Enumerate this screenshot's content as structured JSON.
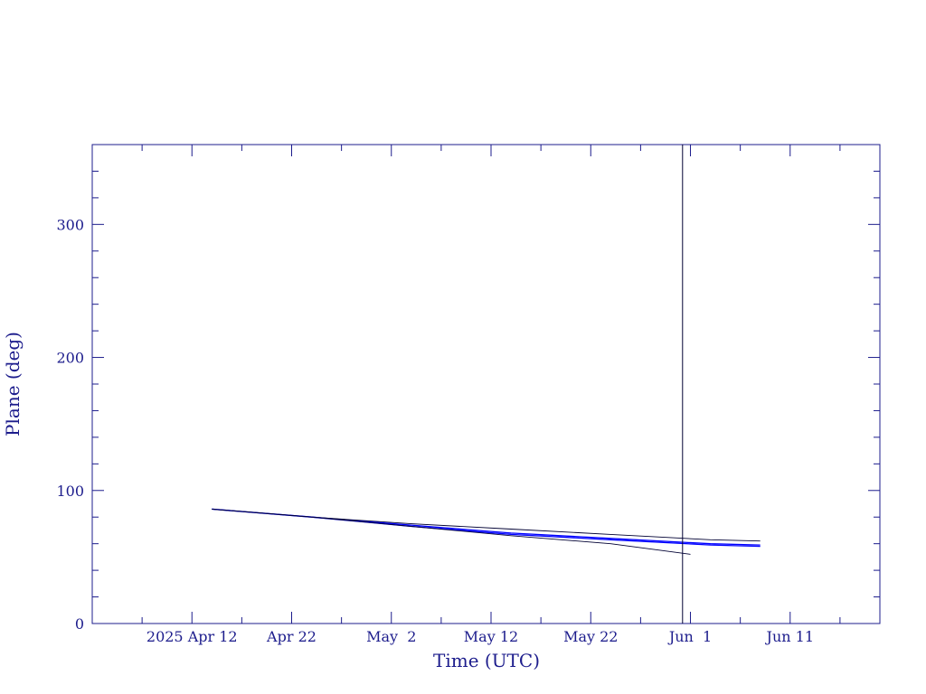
{
  "colors": {
    "axis": "#1c1c8c",
    "series": "#0000ff",
    "model": "#000033"
  },
  "chart_data": {
    "type": "line",
    "title": "",
    "xlabel": "Time (UTC)",
    "ylabel": "Plane (deg)",
    "xlim": [
      "2025-04-02",
      "2025-06-20"
    ],
    "ylim": [
      0,
      360
    ],
    "grid": false,
    "x_ticks": [
      {
        "date": "2025-04-12",
        "label": "2025 Apr 12"
      },
      {
        "date": "2025-04-22",
        "label": "Apr 22"
      },
      {
        "date": "2025-05-02",
        "label": "May  2"
      },
      {
        "date": "2025-05-12",
        "label": "May 12"
      },
      {
        "date": "2025-05-22",
        "label": "May 22"
      },
      {
        "date": "2025-06-01",
        "label": "Jun  1"
      },
      {
        "date": "2025-06-11",
        "label": "Jun 11"
      }
    ],
    "y_ticks": [
      0,
      100,
      200,
      300
    ],
    "reference_line": {
      "x": "2025-05-31T05:00"
    },
    "series": [
      {
        "color": "#0000ff",
        "width": 1.3,
        "x": [
          "2025-04-14",
          "2025-04-24",
          "2025-05-04",
          "2025-05-14",
          "2025-05-24",
          "2025-06-03",
          "2025-06-08"
        ],
        "y": [
          86,
          80,
          74,
          68,
          64,
          60,
          59
        ]
      },
      {
        "color": "#0000ff",
        "width": 1.3,
        "x": [
          "2025-04-14",
          "2025-04-24",
          "2025-05-04",
          "2025-05-14",
          "2025-05-24",
          "2025-06-03",
          "2025-06-08"
        ],
        "y": [
          86,
          80,
          73,
          67,
          63,
          59,
          58
        ]
      },
      {
        "color": "#000033",
        "width": 0.9,
        "x": [
          "2025-04-14",
          "2025-04-24",
          "2025-05-04",
          "2025-05-14",
          "2025-05-24",
          "2025-06-03",
          "2025-06-08"
        ],
        "y": [
          86,
          80,
          75,
          71,
          67,
          63,
          62
        ]
      },
      {
        "color": "#000033",
        "width": 0.9,
        "x": [
          "2025-04-14",
          "2025-04-24",
          "2025-05-04",
          "2025-05-14",
          "2025-05-24",
          "2025-06-01"
        ],
        "y": [
          86,
          80,
          73,
          66,
          60,
          52
        ]
      }
    ]
  }
}
